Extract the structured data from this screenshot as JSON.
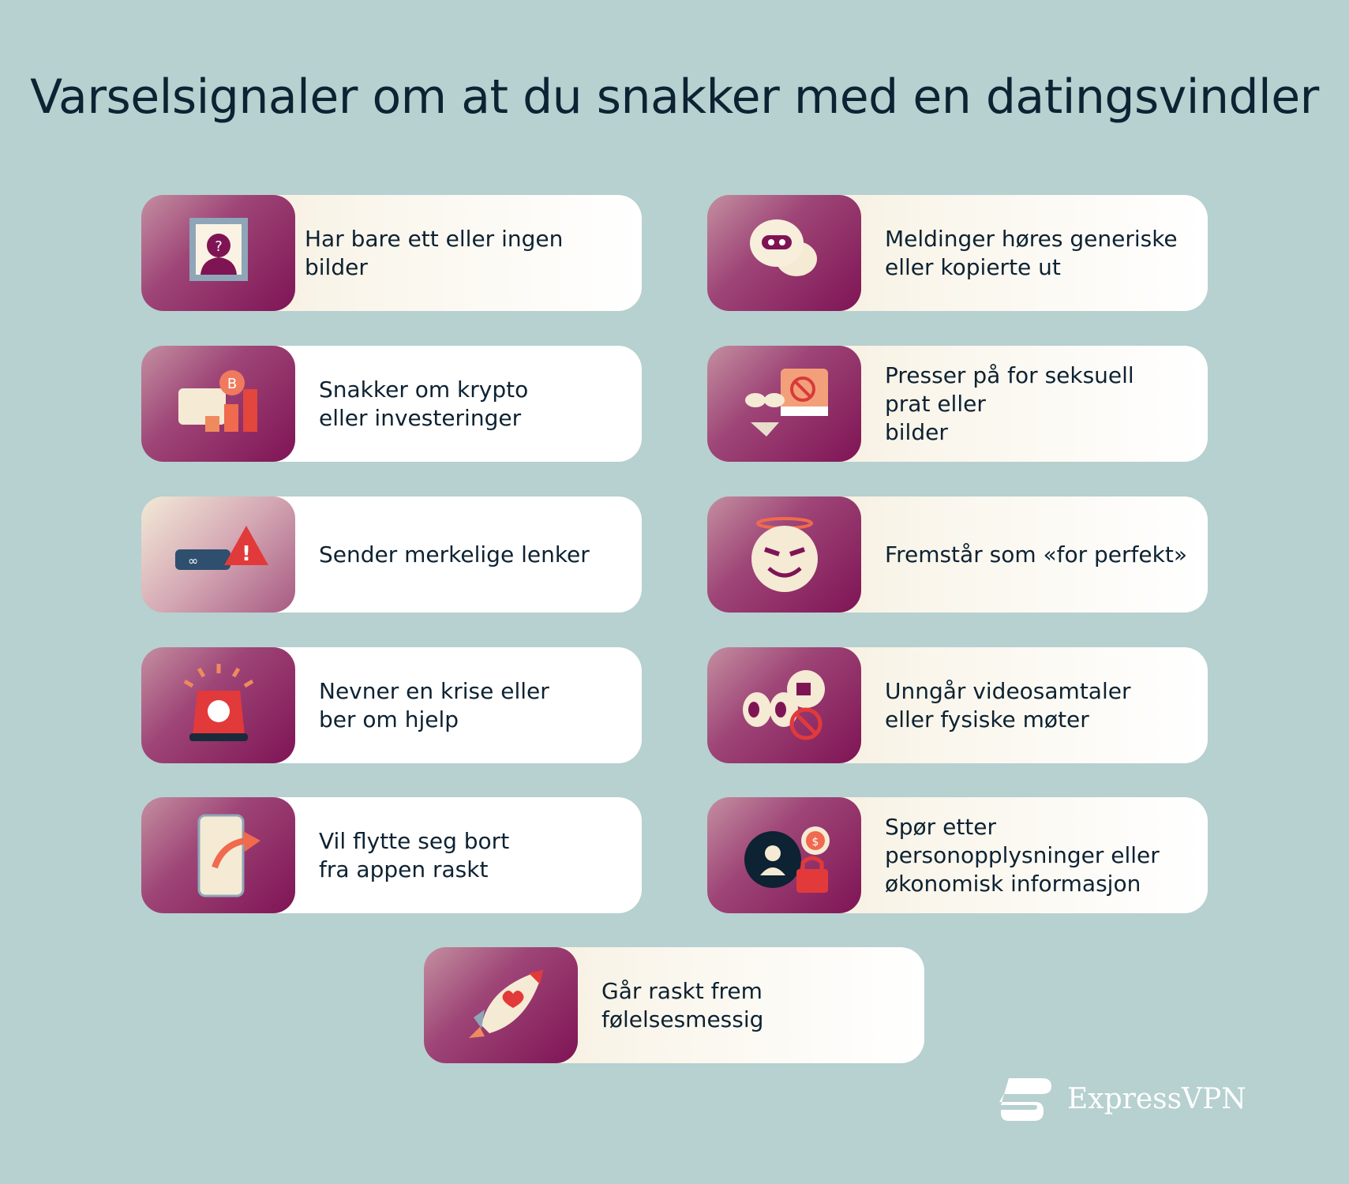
{
  "title": "Varselsignaler om at du snakker med en datingsvindler",
  "cards": [
    {
      "label": "Har bare ett eller ingen bilder",
      "icon": "profile-picture-question-icon"
    },
    {
      "label": "Meldinger høres generiske\neller kopierte ut",
      "icon": "robot-chat-bubble-icon"
    },
    {
      "label": "Snakker om krypto\neller investeringer",
      "icon": "crypto-investment-icon"
    },
    {
      "label": "Presser på for seksuell\nprat eller\nbilder",
      "icon": "blocked-lingerie-icon"
    },
    {
      "label": "Sender merkelige lenker",
      "icon": "link-warning-icon"
    },
    {
      "label": "Fremstår som «for perfekt»",
      "icon": "halo-devil-face-icon"
    },
    {
      "label": "Nevner en krise eller\nber om hjelp",
      "icon": "emergency-siren-icon"
    },
    {
      "label": "Unngår videosamtaler\neller fysiske møter",
      "icon": "no-video-camera-icon"
    },
    {
      "label": "Vil flytte seg bort\nfra appen raskt",
      "icon": "phone-leave-arrow-icon"
    },
    {
      "label": "Spør etter\npersonopplysninger eller\nøkonomisk informasjon",
      "icon": "personal-finance-lock-icon"
    },
    {
      "label": "Går raskt frem\nfølelsesmessig",
      "icon": "heart-rocket-icon"
    }
  ],
  "logo": {
    "text": "ExpressVPN"
  },
  "colors": {
    "background": "#b7d0d0",
    "accent": "#7f1455",
    "text": "#0d2232"
  }
}
